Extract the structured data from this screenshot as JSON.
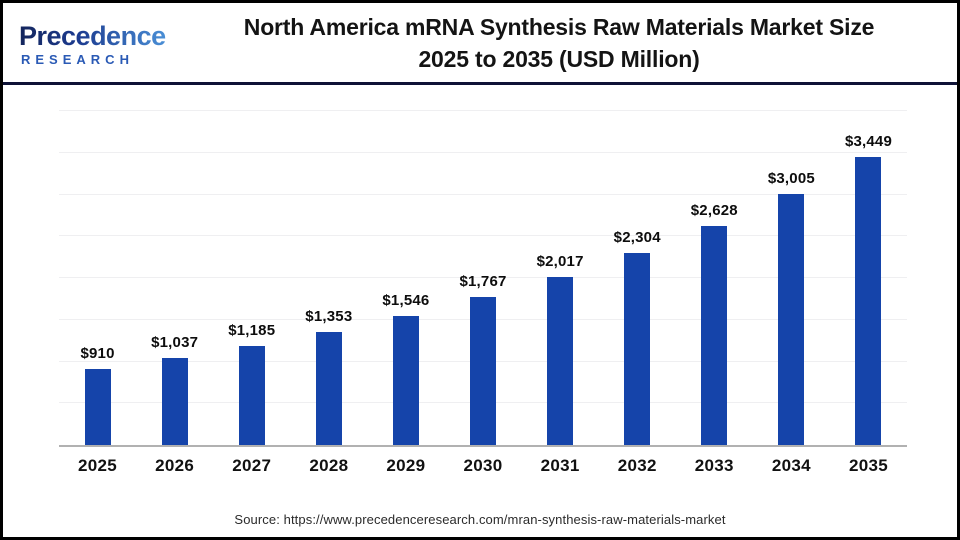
{
  "header": {
    "logo": {
      "title": "Precedence",
      "subtitle": "RESEARCH",
      "accent_dark": "#14265c",
      "accent_light": "#4a8fd6"
    },
    "title_line1": "North America mRNA Synthesis Raw Materials Market Size",
    "title_line2": "2025 to 2035 (USD Million)"
  },
  "chart_data": {
    "type": "bar",
    "title": "North America mRNA Synthesis Raw Materials Market Size 2025 to 2035 (USD Million)",
    "categories": [
      "2025",
      "2026",
      "2027",
      "2028",
      "2029",
      "2030",
      "2031",
      "2032",
      "2033",
      "2034",
      "2035"
    ],
    "values": [
      910,
      1037,
      1185,
      1353,
      1546,
      1767,
      2017,
      2304,
      2628,
      3005,
      3449
    ],
    "value_labels": [
      "$910",
      "$1,037",
      "$1,185",
      "$1,353",
      "$1,546",
      "$1,767",
      "$2,017",
      "$2,304",
      "$2,628",
      "$3,005",
      "$3,449"
    ],
    "unit": "USD Million",
    "xlabel": "",
    "ylabel": "",
    "ylim": [
      0,
      4000
    ],
    "gridline_step": 500,
    "grid": "horizontal",
    "legend": "none",
    "bar_color": "#1544aa"
  },
  "footer": {
    "source": "Source: https://www.precedenceresearch.com/mran-synthesis-raw-materials-market"
  }
}
